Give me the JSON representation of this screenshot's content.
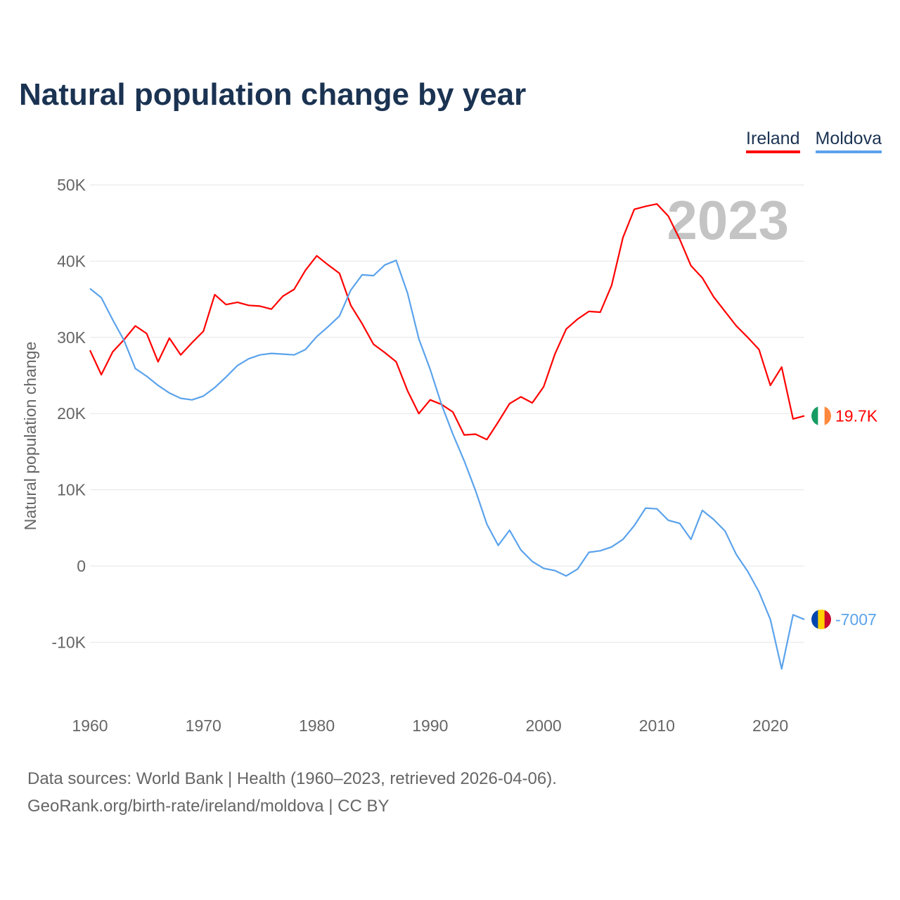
{
  "title": "Natural population change by year",
  "legend": [
    {
      "label": "Ireland",
      "color": "#ff0000"
    },
    {
      "label": "Moldova",
      "color": "#5ba3ec"
    }
  ],
  "year_label": "2023",
  "source_lines": [
    "Data sources: World Bank | Health (1960–2023, retrieved 2026-04-06).",
    "GeoRank.org/birth-rate/ireland/moldova | CC BY"
  ],
  "chart_data": {
    "type": "line",
    "title": "Natural population change by year",
    "xlabel": "",
    "ylabel": "Natural population change",
    "xlim": [
      1960,
      2023
    ],
    "ylim": [
      -15000,
      50000
    ],
    "x_ticks": [
      1960,
      1970,
      1980,
      1990,
      2000,
      2010,
      2020
    ],
    "y_ticks": [
      {
        "v": 50000,
        "label": "50K"
      },
      {
        "v": 40000,
        "label": "40K"
      },
      {
        "v": 30000,
        "label": "30K"
      },
      {
        "v": 20000,
        "label": "20K"
      },
      {
        "v": 10000,
        "label": "10K"
      },
      {
        "v": 0,
        "label": "0"
      },
      {
        "v": -10000,
        "label": "-10K"
      }
    ],
    "grid": true,
    "legend_position": "top-right",
    "x_start": 1960,
    "series": [
      {
        "name": "Ireland",
        "color": "#ff0000",
        "end_label": "19.7K",
        "values": [
          28300,
          25100,
          28100,
          29700,
          31500,
          30500,
          26800,
          29900,
          27700,
          29300,
          30800,
          35600,
          34300,
          34600,
          34200,
          34100,
          33700,
          35400,
          36300,
          38800,
          40700,
          39500,
          38400,
          34200,
          31800,
          29100,
          28000,
          26800,
          23000,
          20000,
          21800,
          21200,
          20200,
          17200,
          17300,
          16600,
          18900,
          21300,
          22200,
          21400,
          23500,
          27800,
          31100,
          32400,
          33400,
          33300,
          36800,
          43100,
          46800,
          47200,
          47500,
          45900,
          42900,
          39400,
          37800,
          35300,
          33400,
          31500,
          30000,
          28400,
          23700,
          26100,
          19300,
          19700
        ]
      },
      {
        "name": "Moldova",
        "color": "#5ba3ec",
        "end_label": "-7007",
        "values": [
          36400,
          35200,
          32300,
          29600,
          25900,
          24900,
          23700,
          22700,
          22000,
          21800,
          22300,
          23400,
          24800,
          26300,
          27200,
          27700,
          27900,
          27800,
          27700,
          28400,
          30100,
          31400,
          32800,
          36200,
          38200,
          38100,
          39500,
          40100,
          35800,
          29800,
          25800,
          21200,
          17300,
          13800,
          9900,
          5500,
          2700,
          4700,
          2100,
          600,
          -300,
          -600,
          -1300,
          -400,
          1800,
          2000,
          2500,
          3500,
          5300,
          7600,
          7500,
          6000,
          5600,
          3500,
          7300,
          6100,
          4600,
          1500,
          -700,
          -3400,
          -7000,
          -13500,
          -6400,
          -7007
        ]
      }
    ]
  }
}
